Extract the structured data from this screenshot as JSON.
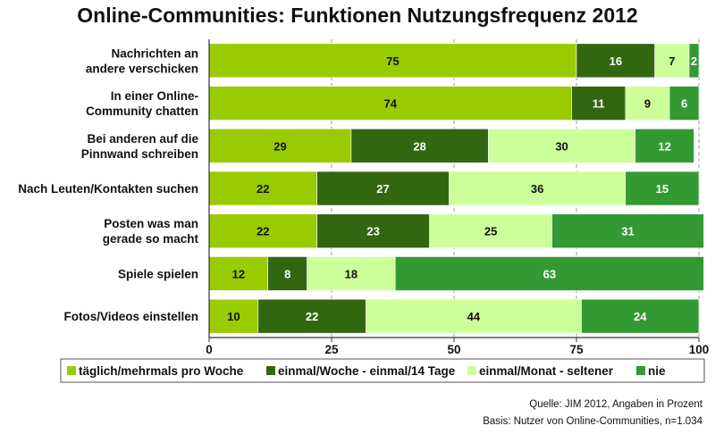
{
  "chart_data": {
    "type": "bar",
    "orientation": "horizontal",
    "stacked": true,
    "title": "Online-Communities: Funktionen Nutzungsfrequenz 2012",
    "categories": [
      [
        "Nachrichten an",
        "andere verschicken"
      ],
      [
        "In einer Online-",
        "Community chatten"
      ],
      [
        "Bei anderen auf die",
        "Pinnwand schreiben"
      ],
      [
        "Nach Leuten/Kontakten suchen"
      ],
      [
        "Posten was man",
        "gerade so macht"
      ],
      [
        "Spiele spielen"
      ],
      [
        "Fotos/Videos einstellen"
      ]
    ],
    "series": [
      {
        "name": "täglich/mehrmals pro Woche",
        "color": "#99cc00",
        "label_color": "#111111",
        "values": [
          75,
          74,
          29,
          22,
          22,
          12,
          10
        ]
      },
      {
        "name": "einmal/Woche - einmal/14 Tage",
        "color": "#336611",
        "label_color": "#ffffff",
        "values": [
          16,
          11,
          28,
          27,
          23,
          8,
          22
        ]
      },
      {
        "name": "einmal/Monat - seltener",
        "color": "#ccff99",
        "label_color": "#111111",
        "values": [
          7,
          9,
          30,
          36,
          25,
          18,
          44
        ]
      },
      {
        "name": "nie",
        "color": "#339933",
        "label_color": "#ffffff",
        "values": [
          2,
          6,
          12,
          15,
          31,
          63,
          24
        ]
      }
    ],
    "xlim": [
      0,
      100
    ],
    "xticks": [
      "0",
      "25",
      "50",
      "75",
      "100"
    ],
    "grid": true,
    "legend_position": "bottom"
  },
  "source": {
    "line1": "Quelle: JIM 2012, Angaben in Prozent",
    "line2": "Basis: Nutzer von Online-Communities, n=1.034"
  }
}
